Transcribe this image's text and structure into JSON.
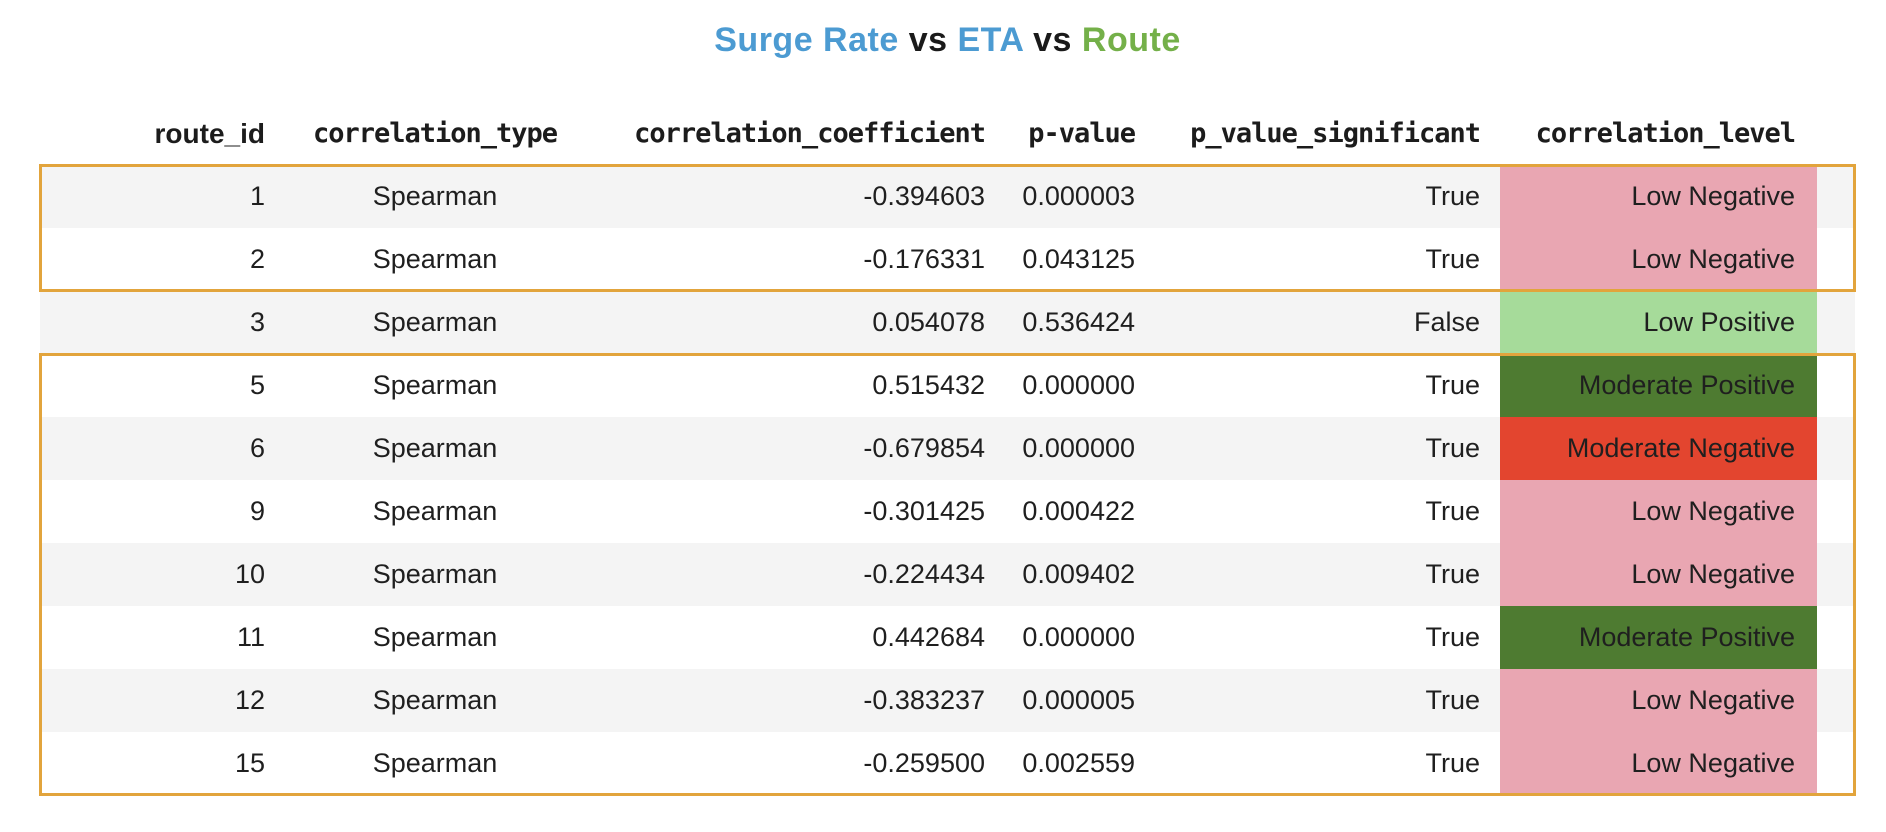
{
  "chart_data": {
    "type": "table",
    "title": "Surge Rate vs ETA vs Route",
    "title_parts": [
      {
        "text": "Surge Rate",
        "color": "#4C9BD2"
      },
      {
        "text": " vs ",
        "color": "#1a1a1a"
      },
      {
        "text": "ETA",
        "color": "#4C9BD2"
      },
      {
        "text": " vs ",
        "color": "#1a1a1a"
      },
      {
        "text": "Route",
        "color": "#74B049"
      }
    ],
    "columns": [
      "route_id",
      "correlation_type",
      "correlation_coefficient",
      "p-value",
      "p_value_significant",
      "correlation_level"
    ],
    "rows": [
      {
        "route_id": "1",
        "correlation_type": "Spearman",
        "correlation_coefficient": "-0.394603",
        "p_value": "0.000003",
        "p_value_significant": "True",
        "correlation_level": "Low Negative",
        "striped": true,
        "group": "group-1"
      },
      {
        "route_id": "2",
        "correlation_type": "Spearman",
        "correlation_coefficient": "-0.176331",
        "p_value": "0.043125",
        "p_value_significant": "True",
        "correlation_level": "Low Negative",
        "striped": false,
        "group": "group-1"
      },
      {
        "route_id": "3",
        "correlation_type": "Spearman",
        "correlation_coefficient": "0.054078",
        "p_value": "0.536424",
        "p_value_significant": "False",
        "correlation_level": "Low Positive",
        "striped": true,
        "group": null
      },
      {
        "route_id": "5",
        "correlation_type": "Spearman",
        "correlation_coefficient": "0.515432",
        "p_value": "0.000000",
        "p_value_significant": "True",
        "correlation_level": "Moderate Positive",
        "striped": false,
        "group": "group-2"
      },
      {
        "route_id": "6",
        "correlation_type": "Spearman",
        "correlation_coefficient": "-0.679854",
        "p_value": "0.000000",
        "p_value_significant": "True",
        "correlation_level": "Moderate Negative",
        "striped": true,
        "group": "group-2"
      },
      {
        "route_id": "9",
        "correlation_type": "Spearman",
        "correlation_coefficient": "-0.301425",
        "p_value": "0.000422",
        "p_value_significant": "True",
        "correlation_level": "Low Negative",
        "striped": false,
        "group": "group-2"
      },
      {
        "route_id": "10",
        "correlation_type": "Spearman",
        "correlation_coefficient": "-0.224434",
        "p_value": "0.009402",
        "p_value_significant": "True",
        "correlation_level": "Low Negative",
        "striped": true,
        "group": "group-2"
      },
      {
        "route_id": "11",
        "correlation_type": "Spearman",
        "correlation_coefficient": "0.442684",
        "p_value": "0.000000",
        "p_value_significant": "True",
        "correlation_level": "Moderate Positive",
        "striped": false,
        "group": "group-2"
      },
      {
        "route_id": "12",
        "correlation_type": "Spearman",
        "correlation_coefficient": "-0.383237",
        "p_value": "0.000005",
        "p_value_significant": "True",
        "correlation_level": "Low Negative",
        "striped": true,
        "group": "group-2"
      },
      {
        "route_id": "15",
        "correlation_type": "Spearman",
        "correlation_coefficient": "-0.259500",
        "p_value": "0.002559",
        "p_value_significant": "True",
        "correlation_level": "Low Negative",
        "striped": false,
        "group": "group-2"
      }
    ],
    "level_colors": {
      "Low Negative": "#E9A6B2",
      "Low Positive": "#A6DB9A",
      "Moderate Positive": "#4E7B31",
      "Moderate Negative": "#E3452F"
    },
    "highlight_border_color": "#E2A43C",
    "stripe_color": "#F4F4F4",
    "layout": {
      "legend": "none",
      "grid": "off"
    }
  }
}
